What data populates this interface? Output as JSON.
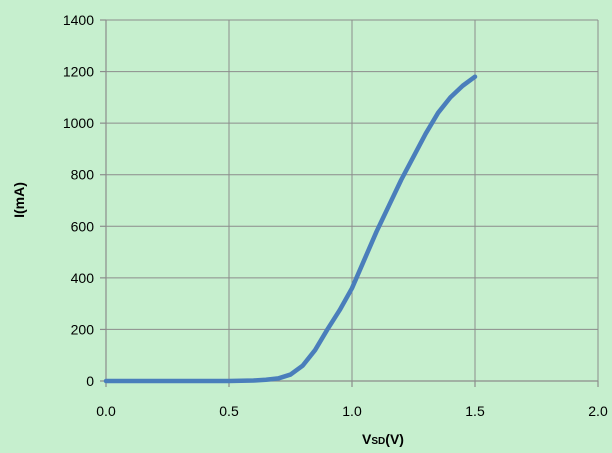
{
  "colors": {
    "background": "#c6efce",
    "grid": "#8c8c8c",
    "series": "#4a7ebb"
  },
  "chart_data": {
    "type": "line",
    "title": "",
    "xlabel": "VSD(V)",
    "xlabel_main": "V",
    "xlabel_sub": "SD",
    "xlabel_unit": "(V)",
    "ylabel": "I(mA)",
    "xlim": [
      0,
      2
    ],
    "ylim": [
      0,
      1400
    ],
    "x_ticks": [
      "0.0",
      "0.5",
      "1.0",
      "1.5",
      "2.0"
    ],
    "y_ticks": [
      "0",
      "200",
      "400",
      "600",
      "800",
      "1000",
      "1200",
      "1400"
    ],
    "grid": true,
    "legend": "none",
    "series": [
      {
        "points": [
          [
            0.0,
            0
          ],
          [
            0.1,
            0
          ],
          [
            0.2,
            0
          ],
          [
            0.3,
            0
          ],
          [
            0.4,
            0
          ],
          [
            0.5,
            0
          ],
          [
            0.6,
            2
          ],
          [
            0.65,
            5
          ],
          [
            0.7,
            10
          ],
          [
            0.75,
            25
          ],
          [
            0.8,
            60
          ],
          [
            0.85,
            120
          ],
          [
            0.9,
            200
          ],
          [
            0.95,
            275
          ],
          [
            1.0,
            360
          ],
          [
            1.05,
            470
          ],
          [
            1.1,
            580
          ],
          [
            1.15,
            680
          ],
          [
            1.2,
            780
          ],
          [
            1.25,
            870
          ],
          [
            1.3,
            960
          ],
          [
            1.35,
            1040
          ],
          [
            1.4,
            1100
          ],
          [
            1.45,
            1145
          ],
          [
            1.5,
            1180
          ]
        ]
      }
    ]
  }
}
